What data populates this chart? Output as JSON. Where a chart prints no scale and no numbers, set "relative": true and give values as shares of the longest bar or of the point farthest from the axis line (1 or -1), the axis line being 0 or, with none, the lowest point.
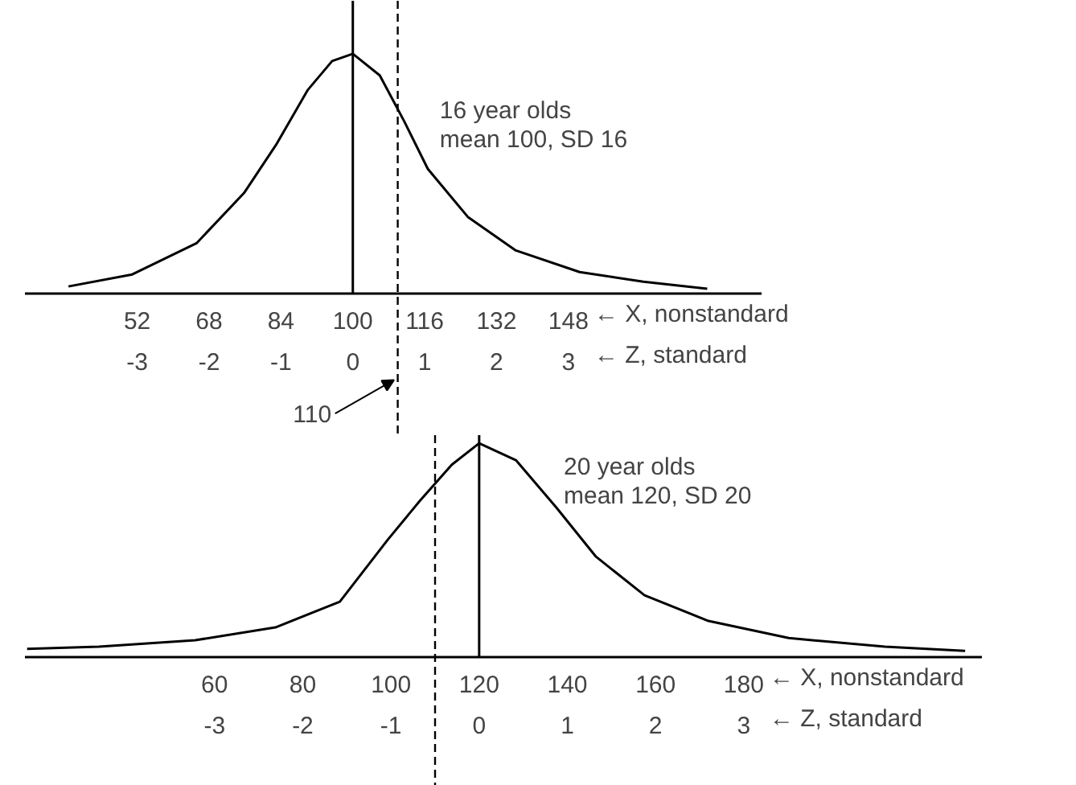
{
  "chart_data": [
    {
      "type": "line",
      "relative": true,
      "xlim": [
        27,
        191
      ],
      "xticks": [
        52,
        68,
        84,
        100,
        116,
        132,
        148
      ],
      "x2lim": [
        -4.5625,
        5.6875
      ],
      "x2ticks": [
        -3,
        -2,
        -1,
        0,
        1,
        2,
        3
      ],
      "x": [
        36.7,
        50.9,
        65.2,
        75.8,
        82.9,
        90.0,
        95.4,
        100,
        106.0,
        111.4,
        116.7,
        125.6,
        136.3,
        150.5,
        164.7,
        178.9
      ],
      "series": [
        {
          "color": "#000000",
          "values": [
            0.03,
            0.08,
            0.21,
            0.42,
            0.62,
            0.85,
            0.97,
            1,
            0.91,
            0.72,
            0.52,
            0.32,
            0.18,
            0.09,
            0.05,
            0.02
          ]
        }
      ],
      "ref_lines": [
        {
          "axis": "x",
          "value": 100,
          "line_style": "solid"
        },
        {
          "axis": "x",
          "value": 110,
          "label": "110",
          "line_style": "dashed"
        }
      ],
      "annotations": [
        "16 year olds\nmean 100, SD 16",
        "← X, nonstandard",
        "← Z, standard"
      ]
    },
    {
      "type": "line",
      "relative": true,
      "xlim": [
        17,
        234
      ],
      "xticks": [
        60,
        80,
        100,
        120,
        140,
        160,
        180
      ],
      "x2lim": [
        -5.15,
        5.7
      ],
      "x2ticks": [
        -3,
        -2,
        -1,
        0,
        1,
        2,
        3
      ],
      "x": [
        17.5,
        33.8,
        55.6,
        73.8,
        88.4,
        99.3,
        106.5,
        113.8,
        120,
        128.4,
        137.5,
        146.5,
        157.5,
        172.0,
        190.2,
        212,
        230.2
      ],
      "series": [
        {
          "color": "#000000",
          "values": [
            0.04,
            0.05,
            0.08,
            0.14,
            0.26,
            0.55,
            0.73,
            0.9,
            1,
            0.92,
            0.7,
            0.47,
            0.29,
            0.17,
            0.09,
            0.05,
            0.03
          ]
        }
      ],
      "ref_lines": [
        {
          "axis": "x",
          "value": 120,
          "line_style": "solid"
        },
        {
          "axis": "x",
          "value": 110,
          "line_style": "dashed"
        }
      ],
      "annotations": [
        "20 year olds\nmean 120, SD 20",
        "← X, nonstandard",
        "← Z, standard"
      ]
    }
  ]
}
